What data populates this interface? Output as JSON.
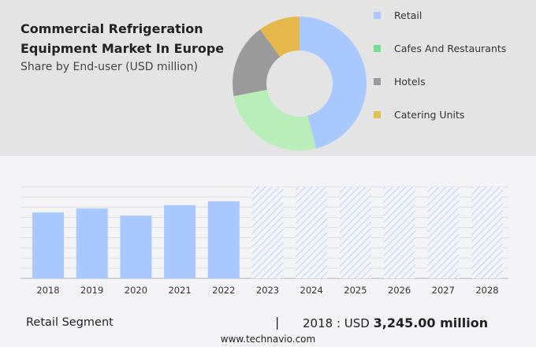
{
  "header": {
    "title": "Commercial Refrigeration Equipment Market In Europe",
    "subtitle": "Share by End-user (USD million)"
  },
  "chart_data": [
    {
      "type": "pie",
      "style": "donut",
      "segments": [
        {
          "label": "Retail",
          "value": 46,
          "color": "#a8c8ff",
          "legend_color": "#a8c8ff"
        },
        {
          "label": "Cafes And Restaurants",
          "value": 26,
          "color": "#b9eebb",
          "legend_color": "#6fe18f"
        },
        {
          "label": "Hotels",
          "value": 18,
          "color": "#9a9a9a",
          "legend_color": "#9a9a9a"
        },
        {
          "label": "Catering Units",
          "value": 10,
          "color": "#e6b84c",
          "legend_color": "#e2c04e"
        }
      ],
      "legend_placement": "right"
    },
    {
      "type": "bar",
      "series_name": "Retail",
      "categories": [
        "2018",
        "2019",
        "2020",
        "2021",
        "2022",
        "2023",
        "2024",
        "2025",
        "2026",
        "2027",
        "2028"
      ],
      "values": [
        3245,
        3440,
        3090,
        3600,
        3790,
        null,
        null,
        null,
        null,
        null,
        null
      ],
      "forecast_from": "2023",
      "color": "#a8c8ff",
      "grid": true,
      "ylim": [
        0,
        4500
      ]
    }
  ],
  "footer": {
    "segment": "Retail Segment",
    "separator": "|",
    "year_label": "2018 : USD",
    "value": "3,245.00 million",
    "website": "www.technavio.com"
  }
}
